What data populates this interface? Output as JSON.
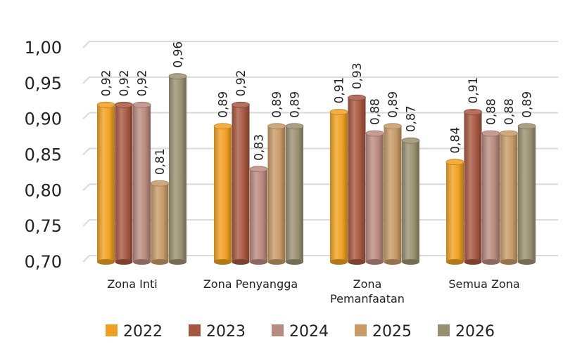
{
  "chart_data": {
    "type": "bar",
    "title": "",
    "xlabel": "",
    "ylabel": "",
    "ylim": [
      0.7,
      1.0
    ],
    "yticks": [
      "0,70",
      "0,75",
      "0,80",
      "0,85",
      "0,90",
      "0,95",
      "1,00"
    ],
    "grid": true,
    "legend_position": "bottom",
    "categories": [
      [
        "Zona Inti"
      ],
      [
        "Zona Penyangga"
      ],
      [
        "Zona",
        "Pemanfaatan"
      ],
      [
        "Semua Zona"
      ]
    ],
    "series": [
      {
        "name": "2022",
        "color": "#F0A020",
        "values": [
          0.92,
          0.89,
          0.91,
          0.84
        ],
        "labels": [
          "0,92",
          "0,89",
          "0,91",
          "0,84"
        ]
      },
      {
        "name": "2023",
        "color": "#A65740",
        "values": [
          0.92,
          0.92,
          0.93,
          0.91
        ],
        "labels": [
          "0,92",
          "0,92",
          "0,93",
          "0,91"
        ]
      },
      {
        "name": "2024",
        "color": "#B98A80",
        "values": [
          0.92,
          0.83,
          0.88,
          0.88
        ],
        "labels": [
          "0,92",
          "0,83",
          "0,88",
          "0,88"
        ]
      },
      {
        "name": "2025",
        "color": "#C79A66",
        "values": [
          0.81,
          0.89,
          0.89,
          0.88
        ],
        "labels": [
          "0,81",
          "0,89",
          "0,89",
          "0,88"
        ]
      },
      {
        "name": "2026",
        "color": "#9A9070",
        "values": [
          0.96,
          0.89,
          0.87,
          0.89
        ],
        "labels": [
          "0,96",
          "0,89",
          "0,87",
          "0,89"
        ]
      }
    ]
  }
}
